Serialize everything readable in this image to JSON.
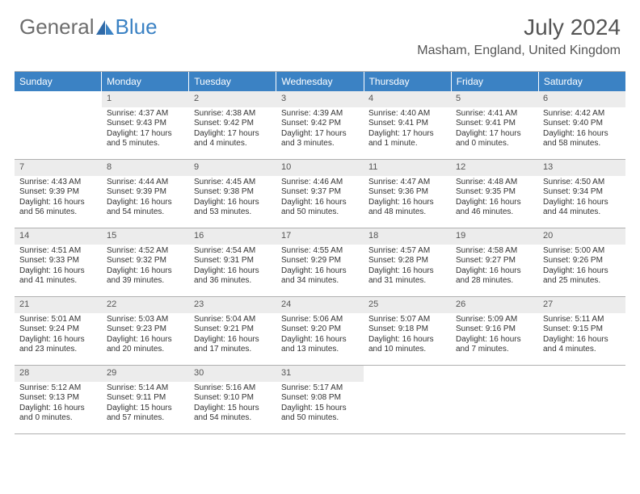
{
  "logo": {
    "part1": "General",
    "part2": "Blue"
  },
  "title": "July 2024",
  "location": "Masham, England, United Kingdom",
  "colors": {
    "header_bg": "#3b82c4",
    "header_text": "#ffffff",
    "daynum_bg": "#ececec",
    "text": "#333333",
    "title_text": "#555555",
    "border": "#b0b0b0"
  },
  "fonts": {
    "title_size_pt": 21,
    "location_size_pt": 12,
    "dayhead_size_pt": 9,
    "cell_size_pt": 8
  },
  "dayheads": [
    "Sunday",
    "Monday",
    "Tuesday",
    "Wednesday",
    "Thursday",
    "Friday",
    "Saturday"
  ],
  "weeks": [
    [
      {
        "n": "",
        "sr": "",
        "ss": "",
        "dl": "",
        "empty": true
      },
      {
        "n": "1",
        "sr": "Sunrise: 4:37 AM",
        "ss": "Sunset: 9:43 PM",
        "dl": "Daylight: 17 hours and 5 minutes."
      },
      {
        "n": "2",
        "sr": "Sunrise: 4:38 AM",
        "ss": "Sunset: 9:42 PM",
        "dl": "Daylight: 17 hours and 4 minutes."
      },
      {
        "n": "3",
        "sr": "Sunrise: 4:39 AM",
        "ss": "Sunset: 9:42 PM",
        "dl": "Daylight: 17 hours and 3 minutes."
      },
      {
        "n": "4",
        "sr": "Sunrise: 4:40 AM",
        "ss": "Sunset: 9:41 PM",
        "dl": "Daylight: 17 hours and 1 minute."
      },
      {
        "n": "5",
        "sr": "Sunrise: 4:41 AM",
        "ss": "Sunset: 9:41 PM",
        "dl": "Daylight: 17 hours and 0 minutes."
      },
      {
        "n": "6",
        "sr": "Sunrise: 4:42 AM",
        "ss": "Sunset: 9:40 PM",
        "dl": "Daylight: 16 hours and 58 minutes."
      }
    ],
    [
      {
        "n": "7",
        "sr": "Sunrise: 4:43 AM",
        "ss": "Sunset: 9:39 PM",
        "dl": "Daylight: 16 hours and 56 minutes."
      },
      {
        "n": "8",
        "sr": "Sunrise: 4:44 AM",
        "ss": "Sunset: 9:39 PM",
        "dl": "Daylight: 16 hours and 54 minutes."
      },
      {
        "n": "9",
        "sr": "Sunrise: 4:45 AM",
        "ss": "Sunset: 9:38 PM",
        "dl": "Daylight: 16 hours and 53 minutes."
      },
      {
        "n": "10",
        "sr": "Sunrise: 4:46 AM",
        "ss": "Sunset: 9:37 PM",
        "dl": "Daylight: 16 hours and 50 minutes."
      },
      {
        "n": "11",
        "sr": "Sunrise: 4:47 AM",
        "ss": "Sunset: 9:36 PM",
        "dl": "Daylight: 16 hours and 48 minutes."
      },
      {
        "n": "12",
        "sr": "Sunrise: 4:48 AM",
        "ss": "Sunset: 9:35 PM",
        "dl": "Daylight: 16 hours and 46 minutes."
      },
      {
        "n": "13",
        "sr": "Sunrise: 4:50 AM",
        "ss": "Sunset: 9:34 PM",
        "dl": "Daylight: 16 hours and 44 minutes."
      }
    ],
    [
      {
        "n": "14",
        "sr": "Sunrise: 4:51 AM",
        "ss": "Sunset: 9:33 PM",
        "dl": "Daylight: 16 hours and 41 minutes."
      },
      {
        "n": "15",
        "sr": "Sunrise: 4:52 AM",
        "ss": "Sunset: 9:32 PM",
        "dl": "Daylight: 16 hours and 39 minutes."
      },
      {
        "n": "16",
        "sr": "Sunrise: 4:54 AM",
        "ss": "Sunset: 9:31 PM",
        "dl": "Daylight: 16 hours and 36 minutes."
      },
      {
        "n": "17",
        "sr": "Sunrise: 4:55 AM",
        "ss": "Sunset: 9:29 PM",
        "dl": "Daylight: 16 hours and 34 minutes."
      },
      {
        "n": "18",
        "sr": "Sunrise: 4:57 AM",
        "ss": "Sunset: 9:28 PM",
        "dl": "Daylight: 16 hours and 31 minutes."
      },
      {
        "n": "19",
        "sr": "Sunrise: 4:58 AM",
        "ss": "Sunset: 9:27 PM",
        "dl": "Daylight: 16 hours and 28 minutes."
      },
      {
        "n": "20",
        "sr": "Sunrise: 5:00 AM",
        "ss": "Sunset: 9:26 PM",
        "dl": "Daylight: 16 hours and 25 minutes."
      }
    ],
    [
      {
        "n": "21",
        "sr": "Sunrise: 5:01 AM",
        "ss": "Sunset: 9:24 PM",
        "dl": "Daylight: 16 hours and 23 minutes."
      },
      {
        "n": "22",
        "sr": "Sunrise: 5:03 AM",
        "ss": "Sunset: 9:23 PM",
        "dl": "Daylight: 16 hours and 20 minutes."
      },
      {
        "n": "23",
        "sr": "Sunrise: 5:04 AM",
        "ss": "Sunset: 9:21 PM",
        "dl": "Daylight: 16 hours and 17 minutes."
      },
      {
        "n": "24",
        "sr": "Sunrise: 5:06 AM",
        "ss": "Sunset: 9:20 PM",
        "dl": "Daylight: 16 hours and 13 minutes."
      },
      {
        "n": "25",
        "sr": "Sunrise: 5:07 AM",
        "ss": "Sunset: 9:18 PM",
        "dl": "Daylight: 16 hours and 10 minutes."
      },
      {
        "n": "26",
        "sr": "Sunrise: 5:09 AM",
        "ss": "Sunset: 9:16 PM",
        "dl": "Daylight: 16 hours and 7 minutes."
      },
      {
        "n": "27",
        "sr": "Sunrise: 5:11 AM",
        "ss": "Sunset: 9:15 PM",
        "dl": "Daylight: 16 hours and 4 minutes."
      }
    ],
    [
      {
        "n": "28",
        "sr": "Sunrise: 5:12 AM",
        "ss": "Sunset: 9:13 PM",
        "dl": "Daylight: 16 hours and 0 minutes."
      },
      {
        "n": "29",
        "sr": "Sunrise: 5:14 AM",
        "ss": "Sunset: 9:11 PM",
        "dl": "Daylight: 15 hours and 57 minutes."
      },
      {
        "n": "30",
        "sr": "Sunrise: 5:16 AM",
        "ss": "Sunset: 9:10 PM",
        "dl": "Daylight: 15 hours and 54 minutes."
      },
      {
        "n": "31",
        "sr": "Sunrise: 5:17 AM",
        "ss": "Sunset: 9:08 PM",
        "dl": "Daylight: 15 hours and 50 minutes."
      },
      {
        "n": "",
        "sr": "",
        "ss": "",
        "dl": "",
        "empty": true
      },
      {
        "n": "",
        "sr": "",
        "ss": "",
        "dl": "",
        "empty": true
      },
      {
        "n": "",
        "sr": "",
        "ss": "",
        "dl": "",
        "empty": true
      }
    ]
  ]
}
